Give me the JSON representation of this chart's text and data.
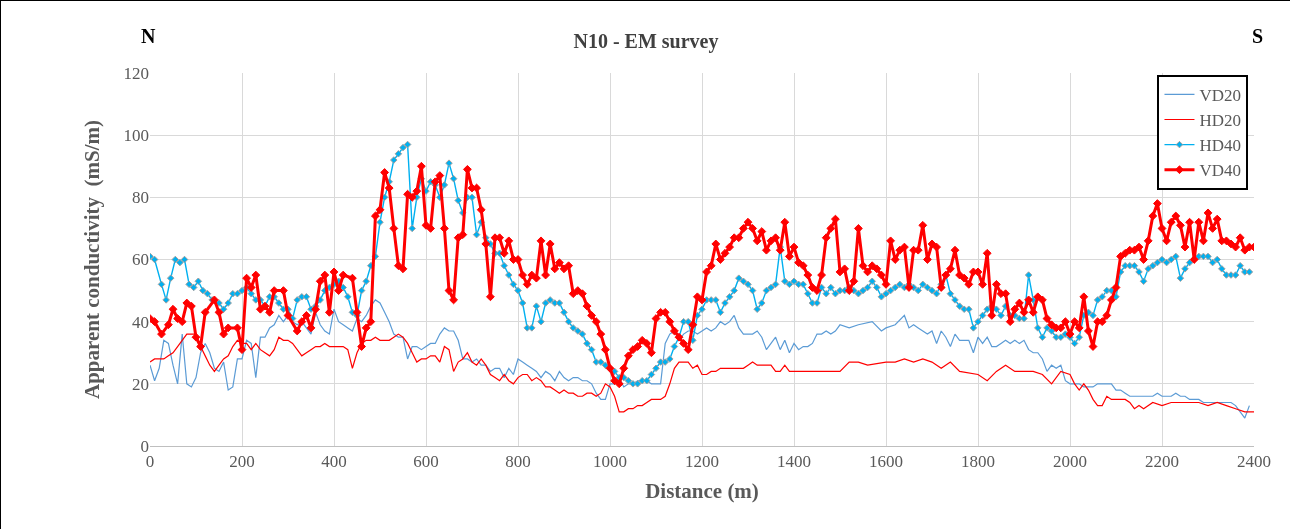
{
  "chart_data": {
    "type": "line",
    "title": "N10 - EM survey",
    "xlabel": "Distance (m)",
    "ylabel": "Apparent conductivity  (mS/m)",
    "annotations": [
      "N",
      "S"
    ],
    "xlim": [
      0,
      2400
    ],
    "xticks": [
      0,
      200,
      400,
      600,
      800,
      1000,
      1200,
      1400,
      1600,
      1800,
      2000,
      2200,
      2400
    ],
    "ylim": [
      0,
      120
    ],
    "yticks": [
      0,
      20,
      40,
      60,
      80,
      100,
      120
    ],
    "grid": true,
    "legend": "top right",
    "series": [
      {
        "name": "VD20",
        "color": "#5b9bd5",
        "marker": "none",
        "x": [
          0,
          10,
          20,
          30,
          40,
          50,
          60,
          70,
          80,
          90,
          100,
          110,
          120,
          130,
          140,
          150,
          160,
          170,
          180,
          190,
          200,
          210,
          220,
          230,
          240,
          250,
          260,
          270,
          280,
          290,
          300,
          310,
          320,
          330,
          340,
          350,
          360,
          370,
          380,
          390,
          400,
          410,
          420,
          430,
          440,
          450,
          460,
          470,
          480,
          490,
          500,
          510,
          520,
          530,
          540,
          550,
          560,
          570,
          580,
          590,
          600,
          610,
          620,
          630,
          640,
          650,
          660,
          670,
          680,
          690,
          700,
          710,
          720,
          730,
          740,
          750,
          760,
          770,
          780,
          790,
          800,
          810,
          820,
          830,
          840,
          850,
          860,
          870,
          880,
          890,
          900,
          910,
          920,
          930,
          940,
          950,
          960,
          970,
          980,
          990,
          1000,
          1010,
          1020,
          1030,
          1040,
          1050,
          1060,
          1070,
          1080,
          1090,
          1100,
          1110,
          1120,
          1130,
          1140,
          1150,
          1160,
          1170,
          1180,
          1190,
          1200,
          1210,
          1220,
          1230,
          1240,
          1250,
          1260,
          1270,
          1280,
          1290,
          1300,
          1310,
          1320,
          1330,
          1340,
          1350,
          1360,
          1370,
          1380,
          1390,
          1400,
          1410,
          1420,
          1430,
          1440,
          1450,
          1460,
          1470,
          1480,
          1490,
          1500,
          1520,
          1540,
          1570,
          1590,
          1600,
          1620,
          1640,
          1650,
          1660,
          1670,
          1690,
          1700,
          1710,
          1720,
          1730,
          1740,
          1750,
          1760,
          1770,
          1780,
          1790,
          1800,
          1810,
          1820,
          1830,
          1840,
          1850,
          1860,
          1870,
          1880,
          1890,
          1900,
          1910,
          1920,
          1930,
          1940,
          1950,
          1960,
          1970,
          1980,
          1990,
          2000,
          2010,
          2020,
          2030,
          2040,
          2050,
          2060,
          2070,
          2080,
          2090,
          2100,
          2110,
          2120,
          2130,
          2140,
          2150,
          2160,
          2170,
          2180,
          2190,
          2200,
          2210,
          2220,
          2230,
          2240,
          2250,
          2260,
          2270,
          2280,
          2290,
          2300,
          2310,
          2320,
          2330,
          2340,
          2350,
          2360,
          2370,
          2380,
          2390
        ],
        "values": [
          26,
          21,
          25,
          34,
          33,
          26,
          20,
          36,
          20,
          19,
          22,
          30,
          33,
          30,
          25,
          24,
          27,
          18,
          19,
          28,
          28,
          34,
          33,
          22,
          35,
          35,
          38,
          39,
          42,
          40,
          42,
          40,
          39,
          40,
          38,
          36,
          43,
          39,
          37,
          36,
          44,
          40,
          39,
          38,
          37,
          41,
          40,
          42,
          45,
          47,
          46,
          43,
          40,
          36,
          35,
          35,
          28,
          32,
          32,
          31,
          32,
          33,
          33,
          36,
          38,
          37,
          37,
          34,
          28,
          28,
          27,
          28,
          26,
          26,
          24,
          25,
          25,
          22,
          25,
          23,
          28,
          27,
          26,
          25,
          24,
          22,
          24,
          23,
          21,
          24,
          22,
          21,
          22,
          22,
          21,
          21,
          20,
          17,
          15,
          15,
          20,
          20,
          22,
          19,
          20,
          20,
          21,
          21,
          21,
          20,
          20,
          20,
          33,
          36,
          37,
          34,
          36,
          37,
          37,
          36,
          37,
          38,
          37,
          38,
          40,
          39,
          40,
          42,
          38,
          36,
          36,
          36,
          37,
          35,
          31,
          33,
          35,
          31,
          34,
          30,
          33,
          31,
          32,
          32,
          33,
          36,
          36,
          37,
          36,
          37,
          39,
          38,
          39,
          40,
          37,
          38,
          39,
          42,
          38,
          39,
          38,
          36,
          37,
          33,
          37,
          35,
          32,
          36,
          34,
          34,
          34,
          30,
          35,
          33,
          35,
          32,
          32,
          33,
          34,
          33,
          34,
          33,
          34,
          31,
          30,
          30,
          28,
          24,
          26,
          25,
          26,
          21,
          20,
          20,
          20,
          19,
          19,
          19,
          20,
          20,
          20,
          20,
          18,
          18,
          17,
          16,
          16,
          16,
          16,
          16,
          16,
          17,
          16,
          16,
          16,
          17,
          16,
          16,
          15,
          15,
          15,
          14,
          14,
          14,
          14,
          14,
          14,
          14,
          13,
          11,
          9,
          13
        ]
      },
      {
        "name": "HD20",
        "color": "#ff0000",
        "marker": "none",
        "x": [
          0,
          10,
          20,
          30,
          40,
          50,
          60,
          70,
          80,
          90,
          100,
          110,
          120,
          130,
          140,
          150,
          160,
          170,
          180,
          190,
          200,
          210,
          220,
          230,
          240,
          250,
          260,
          270,
          280,
          290,
          300,
          310,
          320,
          330,
          340,
          350,
          360,
          370,
          380,
          390,
          400,
          410,
          420,
          430,
          440,
          450,
          460,
          470,
          480,
          490,
          500,
          510,
          520,
          530,
          540,
          550,
          560,
          570,
          580,
          590,
          600,
          610,
          620,
          630,
          640,
          650,
          660,
          670,
          680,
          690,
          700,
          710,
          720,
          730,
          740,
          750,
          760,
          770,
          780,
          790,
          800,
          810,
          820,
          830,
          840,
          850,
          860,
          870,
          880,
          890,
          900,
          910,
          920,
          930,
          940,
          950,
          960,
          970,
          980,
          990,
          1000,
          1010,
          1020,
          1030,
          1040,
          1050,
          1060,
          1070,
          1080,
          1090,
          1100,
          1110,
          1120,
          1130,
          1140,
          1150,
          1160,
          1170,
          1180,
          1190,
          1200,
          1210,
          1220,
          1230,
          1240,
          1250,
          1260,
          1270,
          1280,
          1290,
          1300,
          1310,
          1320,
          1330,
          1340,
          1350,
          1360,
          1370,
          1380,
          1390,
          1400,
          1450,
          1500,
          1520,
          1540,
          1560,
          1600,
          1620,
          1640,
          1660,
          1680,
          1700,
          1720,
          1740,
          1760,
          1800,
          1820,
          1840,
          1860,
          1880,
          1900,
          1920,
          1940,
          1960,
          1980,
          2000,
          2010,
          2020,
          2030,
          2040,
          2050,
          2060,
          2070,
          2080,
          2090,
          2100,
          2120,
          2130,
          2140,
          2150,
          2160,
          2180,
          2200,
          2220,
          2240,
          2260,
          2280,
          2300,
          2320,
          2340,
          2360,
          2380,
          2400
        ],
        "values": [
          27,
          28,
          28,
          28,
          29,
          30,
          32,
          34,
          36,
          36,
          36,
          32,
          29,
          26,
          24,
          26,
          28,
          29,
          32,
          34,
          33,
          33,
          31,
          33,
          31,
          30,
          29,
          31,
          35,
          34,
          34,
          33,
          31,
          29,
          30,
          31,
          32,
          32,
          33,
          32,
          32,
          32,
          32,
          31,
          25,
          30,
          33,
          34,
          34,
          35,
          34,
          34,
          34,
          35,
          36,
          35,
          33,
          30,
          27,
          28,
          28,
          29,
          29,
          27,
          32,
          31,
          24,
          27,
          28,
          30,
          27,
          26,
          28,
          26,
          23,
          22,
          21,
          23,
          21,
          20,
          22,
          23,
          23,
          21,
          22,
          21,
          19,
          19,
          18,
          17,
          18,
          17,
          17,
          16,
          16,
          17,
          17,
          16,
          17,
          20,
          19,
          16,
          11,
          11,
          12,
          12,
          13,
          13,
          14,
          15,
          15,
          15,
          16,
          20,
          25,
          27,
          27,
          27,
          25,
          26,
          23,
          23,
          24,
          24,
          25,
          25,
          25,
          25,
          25,
          25,
          26,
          27,
          26,
          26,
          26,
          26,
          24,
          24,
          26,
          24,
          24,
          24,
          24,
          27,
          27,
          26,
          27,
          27,
          28,
          27,
          28,
          27,
          25,
          27,
          24,
          23,
          21,
          24,
          26,
          24,
          24,
          24,
          23,
          20,
          24,
          23,
          20,
          18,
          20,
          18,
          15,
          13,
          13,
          16,
          15,
          15,
          15,
          14,
          12,
          13,
          12,
          14,
          13,
          14,
          14,
          14,
          14,
          13,
          14,
          13,
          12,
          11,
          11
        ]
      },
      {
        "name": "HD40",
        "color": "#00b0f0",
        "marker": "diamond",
        "x": [
          0,
          10,
          25,
          35,
          45,
          55,
          65,
          75,
          85,
          95,
          105,
          115,
          125,
          135,
          150,
          160,
          170,
          180,
          190,
          200,
          210,
          220,
          230,
          240,
          250,
          260,
          270,
          280,
          290,
          300,
          310,
          320,
          330,
          340,
          350,
          360,
          370,
          380,
          390,
          400,
          410,
          420,
          430,
          440,
          450,
          460,
          470,
          480,
          490,
          500,
          510,
          520,
          530,
          540,
          550,
          560,
          570,
          580,
          590,
          600,
          610,
          620,
          630,
          640,
          650,
          660,
          670,
          680,
          690,
          700,
          710,
          720,
          730,
          740,
          750,
          760,
          770,
          780,
          790,
          800,
          810,
          820,
          830,
          840,
          850,
          860,
          870,
          880,
          890,
          900,
          910,
          920,
          930,
          940,
          950,
          960,
          970,
          980,
          990,
          1000,
          1010,
          1020,
          1030,
          1040,
          1050,
          1060,
          1070,
          1080,
          1090,
          1100,
          1110,
          1120,
          1130,
          1140,
          1150,
          1160,
          1170,
          1180,
          1190,
          1200,
          1210,
          1220,
          1230,
          1240,
          1250,
          1260,
          1270,
          1280,
          1290,
          1300,
          1310,
          1320,
          1330,
          1340,
          1350,
          1360,
          1370,
          1380,
          1390,
          1400,
          1410,
          1420,
          1430,
          1440,
          1450,
          1460,
          1470,
          1480,
          1490,
          1500,
          1510,
          1520,
          1530,
          1540,
          1550,
          1560,
          1570,
          1580,
          1590,
          1600,
          1610,
          1620,
          1630,
          1640,
          1650,
          1660,
          1670,
          1680,
          1690,
          1700,
          1710,
          1720,
          1730,
          1740,
          1750,
          1760,
          1770,
          1780,
          1790,
          1800,
          1810,
          1820,
          1830,
          1840,
          1850,
          1860,
          1870,
          1880,
          1890,
          1900,
          1910,
          1920,
          1930,
          1940,
          1950,
          1960,
          1970,
          1980,
          1990,
          2000,
          2010,
          2020,
          2030,
          2040,
          2050,
          2060,
          2070,
          2080,
          2090,
          2100,
          2110,
          2120,
          2130,
          2140,
          2150,
          2160,
          2170,
          2180,
          2190,
          2200,
          2210,
          2220,
          2230,
          2240,
          2250,
          2260,
          2270,
          2280,
          2290,
          2300,
          2310,
          2320,
          2330,
          2340,
          2350,
          2360,
          2370,
          2380,
          2390
        ],
        "values": [
          61,
          60,
          52,
          47,
          54,
          60,
          59,
          60,
          52,
          51,
          53,
          50,
          49,
          47,
          46,
          44,
          46,
          49,
          49,
          50,
          51,
          49,
          47,
          47,
          45,
          48,
          48,
          46,
          44,
          44,
          41,
          47,
          48,
          48,
          44,
          45,
          47,
          50,
          51,
          52,
          53,
          51,
          48,
          43,
          42,
          50,
          53,
          58,
          61,
          72,
          80,
          85,
          92,
          94,
          96,
          97,
          70,
          80,
          86,
          82,
          85,
          84,
          80,
          84,
          91,
          86,
          79,
          75,
          80,
          80,
          68,
          72,
          67,
          65,
          62,
          62,
          58,
          55,
          52,
          50,
          46,
          38,
          38,
          45,
          40,
          46,
          47,
          46,
          46,
          43,
          40,
          38,
          37,
          36,
          33,
          31,
          27,
          27,
          26,
          25,
          24,
          22,
          22,
          21,
          20,
          20,
          21,
          21,
          23,
          25,
          27,
          27,
          28,
          32,
          35,
          40,
          40,
          34,
          42,
          44,
          47,
          47,
          47,
          43,
          46,
          48,
          50,
          54,
          53,
          52,
          50,
          44,
          46,
          50,
          51,
          52,
          64,
          53,
          52,
          53,
          52,
          52,
          49,
          46,
          46,
          51,
          49,
          51,
          49,
          50,
          50,
          51,
          50,
          49,
          50,
          51,
          53,
          51,
          48,
          49,
          50,
          51,
          52,
          51,
          52,
          51,
          50,
          52,
          51,
          50,
          49,
          52,
          55,
          49,
          47,
          45,
          44,
          44,
          38,
          40,
          42,
          44,
          45,
          44,
          42,
          45,
          42,
          42,
          41,
          41,
          55,
          47,
          38,
          35,
          38,
          37,
          35,
          35,
          36,
          35,
          33,
          35,
          42,
          43,
          42,
          47,
          48,
          50,
          50,
          48,
          56,
          58,
          58,
          58,
          56,
          53,
          57,
          58,
          59,
          60,
          59,
          60,
          61,
          54,
          57,
          59,
          60,
          61,
          61,
          61,
          59,
          60,
          57,
          55,
          55,
          55,
          58,
          56,
          56
        ]
      },
      {
        "name": "VD40",
        "color": "#ff0000",
        "marker": "diamond",
        "x": [
          0,
          10,
          25,
          40,
          50,
          60,
          70,
          80,
          90,
          100,
          110,
          120,
          140,
          150,
          160,
          170,
          190,
          200,
          210,
          220,
          230,
          240,
          250,
          260,
          270,
          290,
          300,
          320,
          330,
          340,
          350,
          360,
          370,
          380,
          390,
          400,
          410,
          420,
          440,
          450,
          460,
          470,
          480,
          490,
          500,
          510,
          520,
          530,
          540,
          550,
          560,
          570,
          580,
          590,
          600,
          610,
          620,
          630,
          640,
          650,
          660,
          670,
          680,
          690,
          700,
          710,
          720,
          730,
          740,
          750,
          760,
          770,
          780,
          790,
          800,
          810,
          820,
          830,
          840,
          850,
          860,
          870,
          880,
          890,
          900,
          910,
          920,
          930,
          940,
          950,
          960,
          970,
          980,
          990,
          1000,
          1010,
          1020,
          1030,
          1040,
          1050,
          1060,
          1070,
          1080,
          1090,
          1100,
          1110,
          1120,
          1130,
          1140,
          1150,
          1160,
          1170,
          1180,
          1190,
          1200,
          1210,
          1220,
          1230,
          1240,
          1250,
          1260,
          1270,
          1280,
          1290,
          1300,
          1310,
          1320,
          1330,
          1340,
          1350,
          1360,
          1370,
          1380,
          1390,
          1400,
          1410,
          1420,
          1430,
          1440,
          1450,
          1460,
          1470,
          1480,
          1490,
          1500,
          1510,
          1520,
          1530,
          1540,
          1550,
          1560,
          1570,
          1580,
          1590,
          1600,
          1610,
          1620,
          1630,
          1640,
          1650,
          1660,
          1670,
          1680,
          1690,
          1700,
          1710,
          1720,
          1730,
          1740,
          1750,
          1760,
          1770,
          1780,
          1790,
          1800,
          1810,
          1820,
          1830,
          1840,
          1850,
          1860,
          1870,
          1880,
          1890,
          1900,
          1910,
          1920,
          1930,
          1940,
          1950,
          1960,
          1970,
          1980,
          1990,
          2000,
          2010,
          2020,
          2030,
          2040,
          2050,
          2060,
          2070,
          2080,
          2090,
          2100,
          2110,
          2120,
          2130,
          2140,
          2150,
          2160,
          2170,
          2180,
          2190,
          2200,
          2210,
          2220,
          2230,
          2240,
          2250,
          2260,
          2270,
          2280,
          2290,
          2300,
          2310,
          2320,
          2330,
          2340,
          2350,
          2360,
          2370,
          2380,
          2390,
          2400
        ],
        "values": [
          41,
          40,
          36,
          39,
          44,
          41,
          40,
          46,
          45,
          35,
          32,
          43,
          47,
          43,
          36,
          38,
          38,
          31,
          54,
          51,
          55,
          44,
          45,
          43,
          50,
          50,
          42,
          37,
          40,
          42,
          38,
          44,
          53,
          55,
          43,
          56,
          50,
          55,
          54,
          43,
          32,
          38,
          40,
          74,
          76,
          88,
          83,
          70,
          58,
          57,
          81,
          80,
          82,
          90,
          71,
          70,
          85,
          87,
          70,
          50,
          47,
          67,
          68,
          89,
          83,
          83,
          76,
          65,
          48,
          67,
          67,
          62,
          66,
          60,
          60,
          55,
          52,
          55,
          54,
          66,
          55,
          65,
          57,
          59,
          57,
          58,
          49,
          50,
          49,
          45,
          42,
          40,
          36,
          31,
          25,
          21,
          20,
          25,
          29,
          31,
          32,
          34,
          33,
          30,
          41,
          43,
          43,
          40,
          37,
          35,
          33,
          31,
          39,
          48,
          47,
          56,
          58,
          65,
          60,
          62,
          64,
          67,
          67,
          70,
          72,
          70,
          66,
          69,
          63,
          66,
          67,
          63,
          72,
          61,
          64,
          59,
          58,
          55,
          51,
          50,
          55,
          67,
          70,
          73,
          56,
          57,
          50,
          53,
          70,
          58,
          56,
          58,
          57,
          55,
          52,
          66,
          60,
          63,
          64,
          51,
          63,
          63,
          71,
          60,
          65,
          64,
          51,
          55,
          57,
          63,
          55,
          54,
          52,
          56,
          56,
          52,
          62,
          42,
          52,
          49,
          49,
          40,
          44,
          46,
          43,
          47,
          43,
          48,
          47,
          41,
          39,
          38,
          38,
          40,
          36,
          40,
          38,
          48,
          37,
          32,
          40,
          40,
          42,
          47,
          51,
          61,
          62,
          63,
          63,
          64,
          60,
          66,
          74,
          78,
          70,
          66,
          72,
          74,
          71,
          64,
          72,
          60,
          72,
          66,
          75,
          70,
          73,
          66,
          66,
          65,
          64,
          67,
          63,
          64,
          64
        ]
      }
    ]
  }
}
